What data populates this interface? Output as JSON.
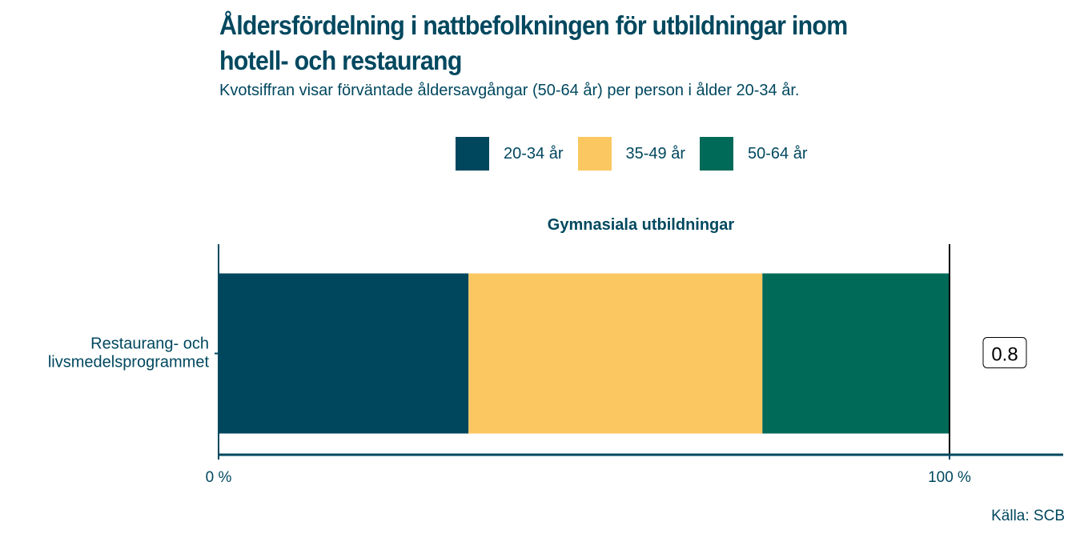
{
  "title": "Åldersfördelning i nattbefolkningen för utbildningar inom hotell- och restaurang",
  "subtitle": "Kvotsiffran visar förväntade åldersavgångar (50-64 år) per person i ålder 20-34 år.",
  "source": "Källa: SCB",
  "chart_data": {
    "type": "bar",
    "orientation": "horizontal-stacked-percent",
    "facet": "Gymnasiala utbildningar",
    "categories": [
      "Restaurang- och livsmedelsprogrammet"
    ],
    "series": [
      {
        "name": "20-34 år",
        "color": "#00475d",
        "values": [
          34.2
        ]
      },
      {
        "name": "35-49 år",
        "color": "#fbc760",
        "values": [
          40.2
        ]
      },
      {
        "name": "50-64 år",
        "color": "#006a58",
        "values": [
          25.6
        ]
      }
    ],
    "ratio_labels": [
      "0.8"
    ],
    "xticks": [
      "0 %",
      "100 %"
    ],
    "xlim": [
      0,
      100
    ],
    "legend": "top"
  }
}
